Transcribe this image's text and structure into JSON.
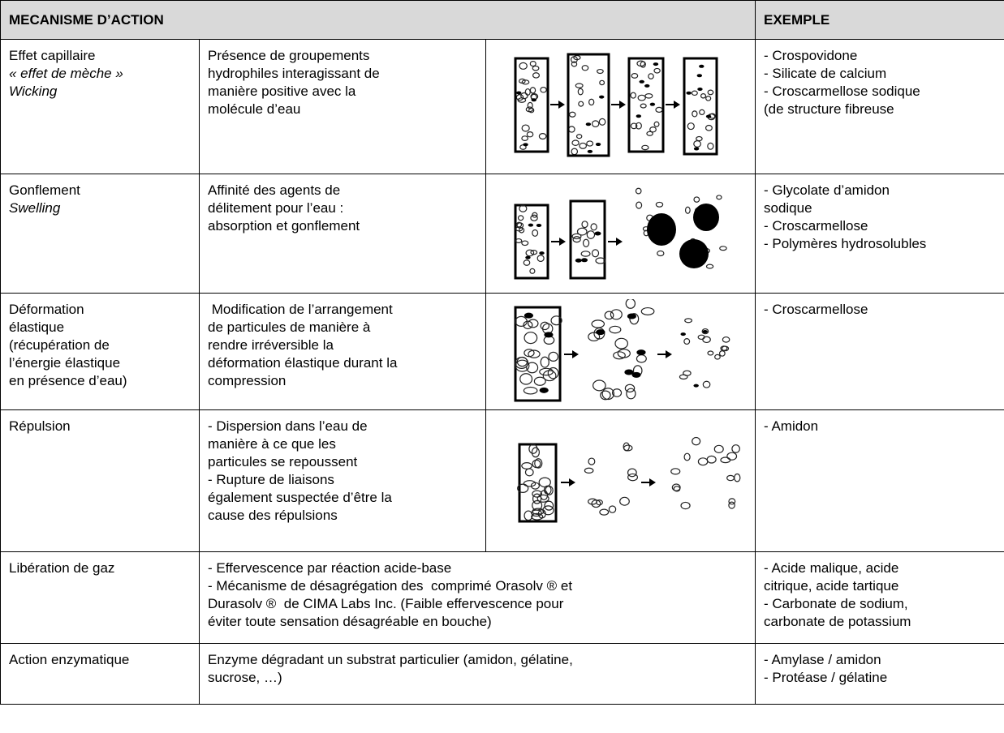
{
  "header": {
    "mechanism": "MECANISME D’ACTION",
    "example": "EXEMPLE"
  },
  "rows": [
    {
      "name": [
        "Effet capillaire"
      ],
      "alt_names": [
        "« effet de mèche »",
        "Wicking"
      ],
      "description": [
        "Présence de groupements",
        "hydrophiles interagissant de",
        "manière positive avec la",
        "molécule d’eau"
      ],
      "examples": [
        "- Crospovidone",
        "- Silicate de calcium",
        "- Croscarmellose sodique",
        "(de structure fibreuse"
      ]
    },
    {
      "name": [
        "Gonflement"
      ],
      "alt_names": [
        "Swelling"
      ],
      "description": [
        "Affinité des agents de",
        "délitement pour l’eau :",
        "absorption et gonflement"
      ],
      "examples": [
        "- Glycolate d’amidon",
        "sodique",
        "- Croscarmellose",
        "- Polymères hydrosolubles"
      ]
    },
    {
      "name": [
        "Déformation",
        "élastique",
        "(récupération de",
        "l’énergie élastique",
        "en présence d’eau)"
      ],
      "description": [
        " Modification de l’arrangement",
        "de particules de manière à",
        "rendre irréversible la",
        "déformation élastique durant la",
        "compression"
      ],
      "examples": [
        "- Croscarmellose"
      ]
    },
    {
      "name": [
        "Répulsion"
      ],
      "description": [
        "- Dispersion dans l’eau de",
        "manière à ce que les",
        "particules se repoussent",
        "- Rupture de liaisons",
        "également suspectée d’être la",
        "cause des répulsions"
      ],
      "examples": [
        "- Amidon"
      ]
    },
    {
      "name": [
        "Libération de gaz"
      ],
      "description": [
        "- Effervescence par réaction acide-base",
        "- Mécanisme de désagrégation des  comprimé Orasolv ® et",
        "Durasolv ®  de CIMA Labs Inc. (Faible effervescence pour",
        "éviter toute sensation désagréable en bouche)"
      ],
      "examples": [
        "- Acide malique, acide",
        "citrique, acide tartique",
        "- Carbonate de sodium,",
        "carbonate de potassium"
      ]
    },
    {
      "name": [
        "Action enzymatique"
      ],
      "description": [
        "Enzyme dégradant un substrat particulier (amidon, gélatine,",
        "sucrose, …)"
      ],
      "examples": [
        "- Amylase / amidon",
        "- Protéase / gélatine"
      ]
    }
  ]
}
